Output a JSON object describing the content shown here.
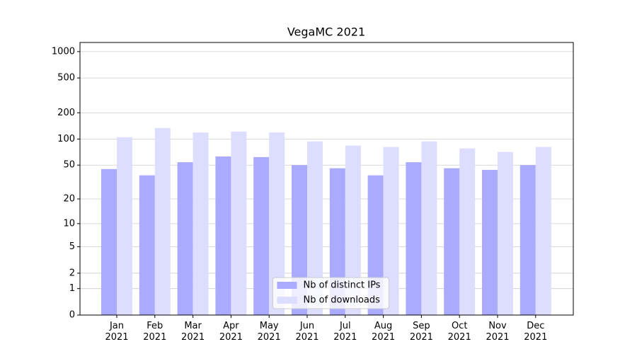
{
  "chart_data": {
    "type": "bar",
    "title": "VegaMC 2021",
    "categories": [
      "Jan\n2021",
      "Feb\n2021",
      "Mar\n2021",
      "Apr\n2021",
      "May\n2021",
      "Jun\n2021",
      "Jul\n2021",
      "Aug\n2021",
      "Sep\n2021",
      "Oct\n2021",
      "Nov\n2021",
      "Dec\n2021"
    ],
    "series": [
      {
        "name": "Nb of distinct IPs",
        "color": "#aaaaff",
        "values": [
          45,
          38,
          54,
          63,
          62,
          50,
          46,
          38,
          54,
          46,
          44,
          50
        ]
      },
      {
        "name": "Nb of downloads",
        "color": "#ddddff",
        "values": [
          105,
          134,
          119,
          122,
          119,
          94,
          84,
          81,
          94,
          78,
          71,
          81
        ]
      }
    ],
    "yscale": "log1p",
    "ylim": [
      0,
      1270
    ],
    "yticks": [
      0,
      1,
      2,
      5,
      10,
      20,
      50,
      100,
      200,
      500,
      1000
    ],
    "grid": true,
    "legend": "lower center"
  }
}
